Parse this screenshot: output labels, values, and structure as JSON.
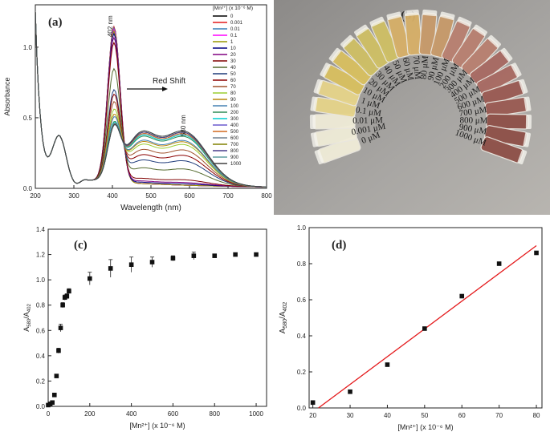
{
  "colors": {
    "axis": "#222222",
    "fit_line": "#e41a1c",
    "arrow": "#111111",
    "vial_gradient": [
      "#f0ecd8",
      "#e6d48a",
      "#d9c060",
      "#cfc065",
      "#d7b068",
      "#c89a6a",
      "#b98070",
      "#a86a62",
      "#9a5a52",
      "#8e5048"
    ]
  },
  "chart_data": [
    {
      "id": "a",
      "type": "line",
      "panel_label": "(a)",
      "title": "",
      "xlabel": "Wavelength (nm)",
      "ylabel": "Absorbance",
      "xlim": [
        200,
        800
      ],
      "ylim": [
        0.0,
        1.3
      ],
      "x_ticks": [
        200,
        300,
        400,
        500,
        600,
        700,
        800
      ],
      "y_ticks": [
        0.0,
        0.5,
        1.0
      ],
      "y_tick_labels": [
        "0.0",
        "0.5",
        "1.0"
      ],
      "annotations": {
        "peak_label": "402 nm",
        "second_peak_label": "580 nm",
        "shift_label": "Red Shift"
      },
      "legend": {
        "title": "[Mn²⁺] (x 10⁻⁶ M)",
        "placement": "top-right",
        "entries": [
          "0",
          "0.001",
          "0.01",
          "0.1",
          "1",
          "10",
          "20",
          "30",
          "40",
          "50",
          "60",
          "70",
          "80",
          "90",
          "100",
          "200",
          "300",
          "400",
          "500",
          "600",
          "700",
          "800",
          "900",
          "1000"
        ]
      },
      "series": [
        {
          "name": "0",
          "color": "#000000",
          "peak402": 1.1,
          "band580": 0.0
        },
        {
          "name": "0.001",
          "color": "#e41a1c",
          "peak402": 1.1,
          "band580": 0.0
        },
        {
          "name": "0.01",
          "color": "#377eb8",
          "peak402": 1.09,
          "band580": 0.0
        },
        {
          "name": "0.1",
          "color": "#ff00ff",
          "peak402": 1.08,
          "band580": 0.0
        },
        {
          "name": "1",
          "color": "#999900",
          "peak402": 1.07,
          "band580": 0.0
        },
        {
          "name": "10",
          "color": "#000080",
          "peak402": 1.05,
          "band580": 0.01
        },
        {
          "name": "20",
          "color": "#800080",
          "peak402": 1.02,
          "band580": 0.02
        },
        {
          "name": "30",
          "color": "#800000",
          "peak402": 0.98,
          "band580": 0.04
        },
        {
          "name": "40",
          "color": "#556b2f",
          "peak402": 0.78,
          "band580": 0.12
        },
        {
          "name": "50",
          "color": "#1f3b7a",
          "peak402": 0.62,
          "band580": 0.18
        },
        {
          "name": "60",
          "color": "#8b0000",
          "peak402": 0.58,
          "band580": 0.22
        },
        {
          "name": "70",
          "color": "#a0522d",
          "peak402": 0.52,
          "band580": 0.26
        },
        {
          "name": "80",
          "color": "#9acd32",
          "peak402": 0.46,
          "band580": 0.3
        },
        {
          "name": "90",
          "color": "#b8860b",
          "peak402": 0.42,
          "band580": 0.32
        },
        {
          "name": "100",
          "color": "#4682b4",
          "peak402": 0.4,
          "band580": 0.33
        },
        {
          "name": "200",
          "color": "#2e8b57",
          "peak402": 0.36,
          "band580": 0.36
        },
        {
          "name": "300",
          "color": "#00ced1",
          "peak402": 0.35,
          "band580": 0.37
        },
        {
          "name": "400",
          "color": "#6a5acd",
          "peak402": 0.34,
          "band580": 0.38
        },
        {
          "name": "500",
          "color": "#d2691e",
          "peak402": 0.34,
          "band580": 0.38
        },
        {
          "name": "600",
          "color": "#708090",
          "peak402": 0.34,
          "band580": 0.39
        },
        {
          "name": "700",
          "color": "#808000",
          "peak402": 0.33,
          "band580": 0.39
        },
        {
          "name": "800",
          "color": "#483d8b",
          "peak402": 0.33,
          "band580": 0.39
        },
        {
          "name": "900",
          "color": "#5f9ea0",
          "peak402": 0.33,
          "band580": 0.4
        },
        {
          "name": "1000",
          "color": "#404040",
          "peak402": 0.33,
          "band580": 0.4
        }
      ]
    },
    {
      "id": "b",
      "type": "photo",
      "panel_label": "(b)",
      "vial_labels": [
        "0 μM",
        "0.001 μM",
        "0.01 μM",
        "0.1 μM",
        "1 μM",
        "10 μM",
        "20 μM",
        "30 μM",
        "40 μM",
        "50 μM",
        "60 μM",
        "70 μM",
        "80 μM",
        "90 μM",
        "100 μM",
        "200 μM",
        "300 μM",
        "400 μM",
        "500 μM",
        "600 μM",
        "700 μM",
        "800 μM",
        "900 μM",
        "1000 μM"
      ]
    },
    {
      "id": "c",
      "type": "scatter",
      "panel_label": "(c)",
      "xlabel": "[Mn²⁺] (x 10⁻⁶ M)",
      "ylabel": "A580/A402",
      "ylabel_main": "A",
      "ylabel_sub1": "580",
      "ylabel_mid": "/A",
      "ylabel_sub2": "402",
      "xlim": [
        0,
        1050
      ],
      "ylim": [
        0.0,
        1.4
      ],
      "x_ticks": [
        0,
        200,
        400,
        600,
        800,
        1000
      ],
      "y_ticks": [
        0.0,
        0.2,
        0.4,
        0.6,
        0.8,
        1.0,
        1.2,
        1.4
      ],
      "y_tick_labels": [
        "0.0",
        "0.2",
        "0.4",
        "0.6",
        "0.8",
        "1.0",
        "1.2",
        "1.4"
      ],
      "points": [
        {
          "x": 0.001,
          "y": 0.01,
          "err": 0.005
        },
        {
          "x": 10,
          "y": 0.02,
          "err": 0.005
        },
        {
          "x": 20,
          "y": 0.03,
          "err": 0.005
        },
        {
          "x": 30,
          "y": 0.09,
          "err": 0.01
        },
        {
          "x": 40,
          "y": 0.24,
          "err": 0.01
        },
        {
          "x": 50,
          "y": 0.44,
          "err": 0.02
        },
        {
          "x": 60,
          "y": 0.62,
          "err": 0.03
        },
        {
          "x": 70,
          "y": 0.8,
          "err": 0.02
        },
        {
          "x": 80,
          "y": 0.86,
          "err": 0.02
        },
        {
          "x": 90,
          "y": 0.87,
          "err": 0.02
        },
        {
          "x": 100,
          "y": 0.91,
          "err": 0.02
        },
        {
          "x": 200,
          "y": 1.01,
          "err": 0.05
        },
        {
          "x": 300,
          "y": 1.09,
          "err": 0.07
        },
        {
          "x": 400,
          "y": 1.12,
          "err": 0.06
        },
        {
          "x": 500,
          "y": 1.14,
          "err": 0.04
        },
        {
          "x": 600,
          "y": 1.17,
          "err": 0.02
        },
        {
          "x": 700,
          "y": 1.19,
          "err": 0.03
        },
        {
          "x": 800,
          "y": 1.19,
          "err": 0.01
        },
        {
          "x": 900,
          "y": 1.2,
          "err": 0.01
        },
        {
          "x": 1000,
          "y": 1.2,
          "err": 0.01
        }
      ]
    },
    {
      "id": "d",
      "type": "scatter",
      "panel_label": "(d)",
      "xlabel": "[Mn²⁺] (x 10⁻⁶ M)",
      "ylabel": "A580/A402",
      "ylabel_main": "A",
      "ylabel_sub1": "580",
      "ylabel_mid": "/A",
      "ylabel_sub2": "402",
      "xlim": [
        19,
        81.5
      ],
      "ylim": [
        0.0,
        1.0
      ],
      "x_ticks": [
        20,
        30,
        40,
        50,
        60,
        70,
        80
      ],
      "y_ticks": [
        0.0,
        0.2,
        0.4,
        0.6,
        0.8,
        1.0
      ],
      "y_tick_labels": [
        "0.0",
        "0.2",
        "0.4",
        "0.6",
        "0.8",
        "1.0"
      ],
      "points": [
        {
          "x": 20,
          "y": 0.03
        },
        {
          "x": 30,
          "y": 0.09
        },
        {
          "x": 40,
          "y": 0.24
        },
        {
          "x": 50,
          "y": 0.44
        },
        {
          "x": 60,
          "y": 0.62
        },
        {
          "x": 70,
          "y": 0.8
        },
        {
          "x": 80,
          "y": 0.86
        }
      ],
      "fit_line": {
        "x": [
          21.5,
          80
        ],
        "y": [
          0.0,
          0.9
        ]
      }
    }
  ]
}
